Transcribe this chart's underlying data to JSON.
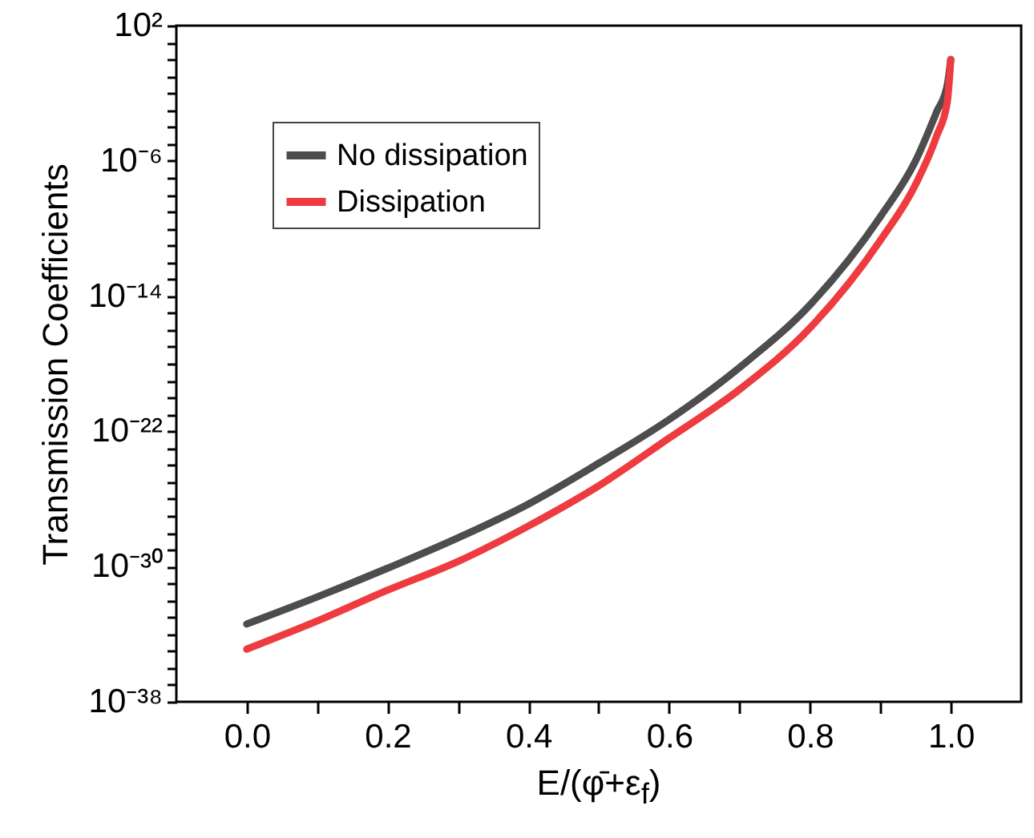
{
  "chart_data": {
    "type": "line",
    "xlabel": "E/(φ̄+ε$_{f}$)",
    "ylabel": "Transmission Coefficients",
    "x": [
      0,
      0.1,
      0.2,
      0.3,
      0.4,
      0.5,
      0.6,
      0.7,
      0.8,
      0.9,
      0.95,
      0.98,
      0.995,
      1.0
    ],
    "series": [
      {
        "name": "No dissipation",
        "color": "#4d4d4d",
        "values": [
          4e-34,
          1.6e-32,
          8e-31,
          5e-29,
          5e-27,
          1.3e-24,
          5e-22,
          6e-19,
          3e-15,
          5e-10,
          1e-06,
          0.0008,
          0.03,
          1
        ]
      },
      {
        "name": "Dissipation",
        "color": "#ee3b3f",
        "values": [
          1.3e-35,
          6e-34,
          4e-32,
          2e-30,
          2.5e-28,
          6e-26,
          4e-23,
          3e-20,
          1.3e-16,
          2e-11,
          4e-08,
          3e-05,
          0.003,
          1
        ]
      }
    ],
    "log": "y",
    "legend": "top left",
    "marker": "none",
    "line_style": "solid",
    "grid": false,
    "xlim": [
      -0.1,
      1.1
    ],
    "ylim": [
      1e-38,
      100
    ],
    "xticks": [
      {
        "value": 0,
        "label": "0.0"
      },
      {
        "value": 0.1,
        "label": null
      },
      {
        "value": 0.2,
        "label": "0.2"
      },
      {
        "value": 0.3,
        "label": null
      },
      {
        "value": 0.4,
        "label": "0.4"
      },
      {
        "value": 0.5,
        "label": null
      },
      {
        "value": 0.6,
        "label": "0.6"
      },
      {
        "value": 0.7,
        "label": null
      },
      {
        "value": 0.8,
        "label": "0.8"
      },
      {
        "value": 0.9,
        "label": null
      },
      {
        "value": 1,
        "label": "1.0"
      }
    ],
    "yticks": [
      {
        "value": 1e-38,
        "label": "10⁻³⁸"
      },
      {
        "value": 1e-37,
        "label": null
      },
      {
        "value": 1e-36,
        "label": null
      },
      {
        "value": 1e-35,
        "label": null
      },
      {
        "value": 1e-34,
        "label": null
      },
      {
        "value": 1e-33,
        "label": null
      },
      {
        "value": 1e-32,
        "label": null
      },
      {
        "value": 1e-31,
        "label": null
      },
      {
        "value": 1e-30,
        "label": "10⁻³⁰"
      },
      {
        "value": 1e-29,
        "label": null
      },
      {
        "value": 1e-28,
        "label": null
      },
      {
        "value": 1e-27,
        "label": null
      },
      {
        "value": 1e-26,
        "label": null
      },
      {
        "value": 1e-25,
        "label": null
      },
      {
        "value": 1e-24,
        "label": null
      },
      {
        "value": 1e-23,
        "label": null
      },
      {
        "value": 1e-22,
        "label": "10⁻²²"
      },
      {
        "value": 1e-21,
        "label": null
      },
      {
        "value": 1e-20,
        "label": null
      },
      {
        "value": 1e-19,
        "label": null
      },
      {
        "value": 1e-18,
        "label": null
      },
      {
        "value": 1e-17,
        "label": null
      },
      {
        "value": 1e-16,
        "label": null
      },
      {
        "value": 1e-15,
        "label": null
      },
      {
        "value": 1e-14,
        "label": "10⁻¹⁴"
      },
      {
        "value": 1e-13,
        "label": null
      },
      {
        "value": 1e-12,
        "label": null
      },
      {
        "value": 1e-11,
        "label": null
      },
      {
        "value": 1e-10,
        "label": null
      },
      {
        "value": 1e-09,
        "label": null
      },
      {
        "value": 1e-08,
        "label": null
      },
      {
        "value": 1e-07,
        "label": null
      },
      {
        "value": 1e-06,
        "label": "10⁻⁶"
      },
      {
        "value": 1e-05,
        "label": null
      },
      {
        "value": 0.0001,
        "label": null
      },
      {
        "value": 0.001,
        "label": null
      },
      {
        "value": 0.01,
        "label": null
      },
      {
        "value": 0.1,
        "label": null
      },
      {
        "value": 1,
        "label": null
      },
      {
        "value": 10,
        "label": null
      },
      {
        "value": 100,
        "label": "10²"
      }
    ]
  }
}
